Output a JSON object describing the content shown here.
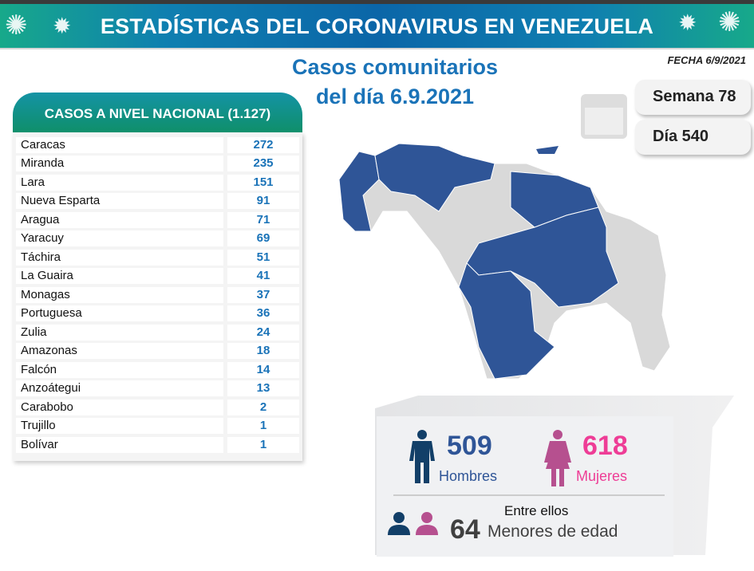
{
  "header": {
    "title": "ESTADÍSTICAS DEL CORONAVIRUS EN VENEZUELA"
  },
  "subtitle": {
    "line1": "Casos comunitarios",
    "line2": "del día 6.9.2021"
  },
  "fecha": "FECHA 6/9/2021",
  "semana": "Semana 78",
  "dia": "Día 540",
  "table": {
    "title": "CASOS A NIVEL NACIONAL (1.127)",
    "rows": [
      {
        "state": "Caracas",
        "cases": "272"
      },
      {
        "state": "Miranda",
        "cases": "235"
      },
      {
        "state": "Lara",
        "cases": "151"
      },
      {
        "state": "Nueva Esparta",
        "cases": "91"
      },
      {
        "state": "Aragua",
        "cases": "71"
      },
      {
        "state": "Yaracuy",
        "cases": "69"
      },
      {
        "state": "Táchira",
        "cases": "51"
      },
      {
        "state": "La Guaira",
        "cases": "41"
      },
      {
        "state": "Monagas",
        "cases": "37"
      },
      {
        "state": "Portuguesa",
        "cases": "36"
      },
      {
        "state": "Zulia",
        "cases": "24"
      },
      {
        "state": "Amazonas",
        "cases": "18"
      },
      {
        "state": "Falcón",
        "cases": "14"
      },
      {
        "state": "Anzoátegui",
        "cases": "13"
      },
      {
        "state": "Carabobo",
        "cases": "2"
      },
      {
        "state": "Trujillo",
        "cases": "1"
      },
      {
        "state": "Bolívar",
        "cases": "1"
      }
    ]
  },
  "gender": {
    "men": "509",
    "men_label": "Hombres",
    "women": "618",
    "women_label": "Mujeres",
    "between": "Entre ellos",
    "minors": "64",
    "minors_label": "Menores de edad"
  },
  "colors": {
    "blue": "#2f5597",
    "pink": "#ee3d96",
    "men_icon": "#123f68",
    "women_icon": "#b6508f"
  }
}
